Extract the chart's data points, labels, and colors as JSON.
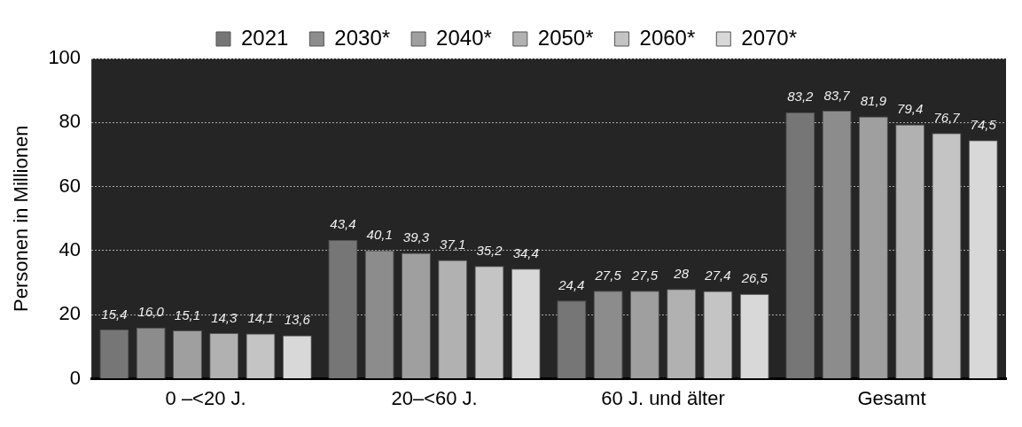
{
  "chart_data": {
    "type": "bar",
    "ylabel": "Personen in Millionen",
    "categories": [
      "0 –<20 J.",
      "20–<60 J.",
      "60 J. und älter",
      "Gesamt"
    ],
    "series": [
      {
        "name": "2021",
        "color": "#767676",
        "values": [
          15.4,
          43.4,
          24.4,
          83.2
        ],
        "value_labels": [
          "15,4",
          "43,4",
          "24,4",
          "83,2"
        ]
      },
      {
        "name": "2030*",
        "color": "#8c8c8c",
        "values": [
          16.0,
          40.1,
          27.5,
          83.7
        ],
        "value_labels": [
          "16,0",
          "40,1",
          "27,5",
          "83,7"
        ]
      },
      {
        "name": "2040*",
        "color": "#9f9f9f",
        "values": [
          15.1,
          39.3,
          27.5,
          81.9
        ],
        "value_labels": [
          "15,1",
          "39,3",
          "27,5",
          "81,9"
        ]
      },
      {
        "name": "2050*",
        "color": "#b1b1b1",
        "values": [
          14.3,
          37.1,
          28,
          79.4
        ],
        "value_labels": [
          "14,3",
          "37,1",
          "28",
          "79,4"
        ]
      },
      {
        "name": "2060*",
        "color": "#c4c4c4",
        "values": [
          14.1,
          35.2,
          27.4,
          76.7
        ],
        "value_labels": [
          "14,1",
          "35,2",
          "27,4",
          "76,7"
        ]
      },
      {
        "name": "2070*",
        "color": "#d8d8d8",
        "values": [
          13.6,
          34.4,
          26.5,
          74.5
        ],
        "value_labels": [
          "13,6",
          "34,4",
          "26,5",
          "74,5"
        ]
      }
    ],
    "ylim": [
      0,
      100
    ],
    "yticks": [
      0,
      20,
      40,
      60,
      80,
      100
    ],
    "grid": "y",
    "legend": "top"
  }
}
